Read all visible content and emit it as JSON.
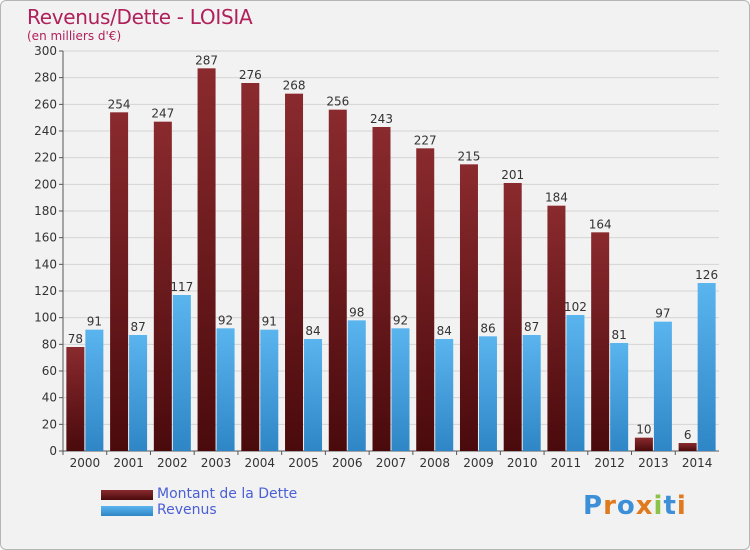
{
  "title": "Revenus/Dette - LOISIA",
  "subtitle": "(en milliers d'€)",
  "legend": {
    "dette_label": "Montant de la Dette",
    "revenus_label": "Revenus"
  },
  "logo_text": "Proxiti",
  "colors": {
    "dette_top": "#8a2a2e",
    "dette_bottom": "#4a0a0c",
    "revenus_top": "#5ab4ee",
    "revenus_bottom": "#2f86c6",
    "title": "#b0205a",
    "legend_text": "#4a5fd6"
  },
  "chart_data": {
    "type": "bar",
    "categories": [
      "2000",
      "2001",
      "2002",
      "2003",
      "2004",
      "2005",
      "2006",
      "2007",
      "2008",
      "2009",
      "2010",
      "2011",
      "2012",
      "2013",
      "2014"
    ],
    "series": [
      {
        "name": "Montant de la Dette",
        "values": [
          78,
          254,
          247,
          287,
          276,
          268,
          256,
          243,
          227,
          215,
          201,
          184,
          164,
          10,
          6
        ]
      },
      {
        "name": "Revenus",
        "values": [
          91,
          87,
          117,
          92,
          91,
          84,
          98,
          92,
          84,
          86,
          87,
          102,
          81,
          97,
          126
        ]
      }
    ],
    "ylim": [
      0,
      300
    ],
    "yticks": [
      0,
      20,
      40,
      60,
      80,
      100,
      120,
      140,
      160,
      180,
      200,
      220,
      240,
      260,
      280,
      300
    ],
    "grid": true,
    "legend_position": "bottom-left"
  }
}
